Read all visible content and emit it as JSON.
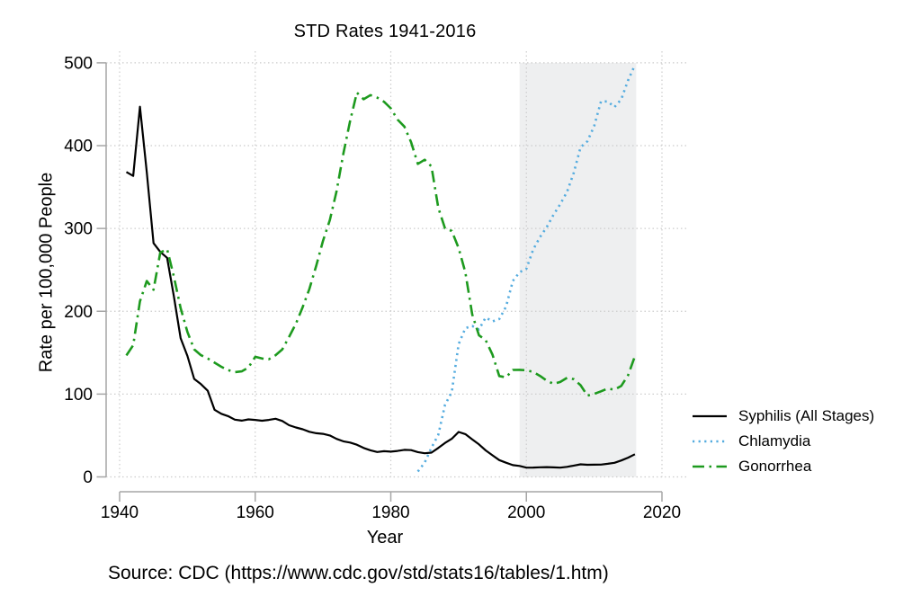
{
  "source_note": "Source: CDC (https://www.cdc.gov/std/stats16/tables/1.htm)",
  "chart_data": {
    "type": "line",
    "title": "STD Rates 1941-2016",
    "xlabel": "Year",
    "ylabel": "Rate per 100,000 People",
    "xlim": [
      1940,
      2020
    ],
    "ylim": [
      0,
      500
    ],
    "x_ticks": [
      1940,
      1960,
      1980,
      2000,
      2020
    ],
    "y_ticks": [
      0,
      100,
      200,
      300,
      400,
      500
    ],
    "grid": "dotted",
    "legend_position": "right-outside",
    "shaded_region": {
      "from": 1999,
      "to": 2016.2,
      "color": "#eeeff0"
    },
    "axis_color": "#a6a6a6",
    "gridline_color": "#cccccc",
    "series": [
      {
        "id": "syphilis",
        "name": "Syphilis (All Stages)",
        "color": "#000000",
        "dash": "",
        "width": 2.2,
        "start_year": 1941,
        "values": [
          368.2,
          363.4,
          447.0,
          367.9,
          282.3,
          271.7,
          264.6,
          218.2,
          167.6,
          146.0,
          118.3,
          112.0,
          104.0,
          81.1,
          76.2,
          73.4,
          69.1,
          68.0,
          69.5,
          68.8,
          67.8,
          68.8,
          70.2,
          67.5,
          62.4,
          59.7,
          57.5,
          54.5,
          52.8,
          52.0,
          50.0,
          45.9,
          43.0,
          41.5,
          38.9,
          35.0,
          32.1,
          30.1,
          31.0,
          30.5,
          31.4,
          32.7,
          32.4,
          30.0,
          28.5,
          29.3,
          35.0,
          41.0,
          46.0,
          54.3,
          51.7,
          45.3,
          39.3,
          32.0,
          26.1,
          20.3,
          17.1,
          14.2,
          13.2,
          11.2,
          11.3,
          11.6,
          11.8,
          11.5,
          11.2,
          12.2,
          13.7,
          15.2,
          14.7,
          14.8,
          14.9,
          15.9,
          17.0,
          19.9,
          23.2,
          27.4
        ]
      },
      {
        "id": "chlamydia",
        "name": "Chlamydia",
        "color": "#55acdf",
        "dash": "2.2 4.4",
        "width": 2.6,
        "start_year": 1984,
        "values": [
          6.5,
          17.4,
          35.2,
          50.8,
          87.1,
          102.5,
          160.2,
          179.7,
          182.3,
          178.0,
          192.5,
          187.8,
          190.6,
          205.5,
          236.6,
          247.2,
          251.4,
          274.5,
          289.4,
          301.7,
          316.5,
          329.4,
          344.3,
          367.5,
          398.1,
          405.3,
          423.6,
          453.4,
          453.3,
          446.6,
          456.1,
          478.8,
          497.3
        ]
      },
      {
        "id": "gonorrhea",
        "name": "Gonorrhea",
        "color": "#1d9a1e",
        "dash": "13 5.5 2.5 5.5",
        "width": 2.6,
        "start_year": 1941,
        "values": [
          146.7,
          159.0,
          212.0,
          236.5,
          226.0,
          271.0,
          275.0,
          242.0,
          204.0,
          175.0,
          154.0,
          147.0,
          143.0,
          138.0,
          133.0,
          129.0,
          126.5,
          127.4,
          132.0,
          145.0,
          143.0,
          142.0,
          147.0,
          154.0,
          169.0,
          185.0,
          205.0,
          227.0,
          255.0,
          285.0,
          310.0,
          345.0,
          390.0,
          430.0,
          464.1,
          456.0,
          461.0,
          458.0,
          453.0,
          445.1,
          431.5,
          423.0,
          404.0,
          378.0,
          383.0,
          375.0,
          325.0,
          300.0,
          297.0,
          276.4,
          247.0,
          196.4,
          171.1,
          165.1,
          147.5,
          121.8,
          120.2,
          129.2,
          129.3,
          128.7,
          126.8,
          122.0,
          116.2,
          112.4,
          114.6,
          119.7,
          118.0,
          110.7,
          98.1,
          100.2,
          103.3,
          106.7,
          105.3,
          110.0,
          122.7,
          145.8
        ]
      }
    ]
  }
}
